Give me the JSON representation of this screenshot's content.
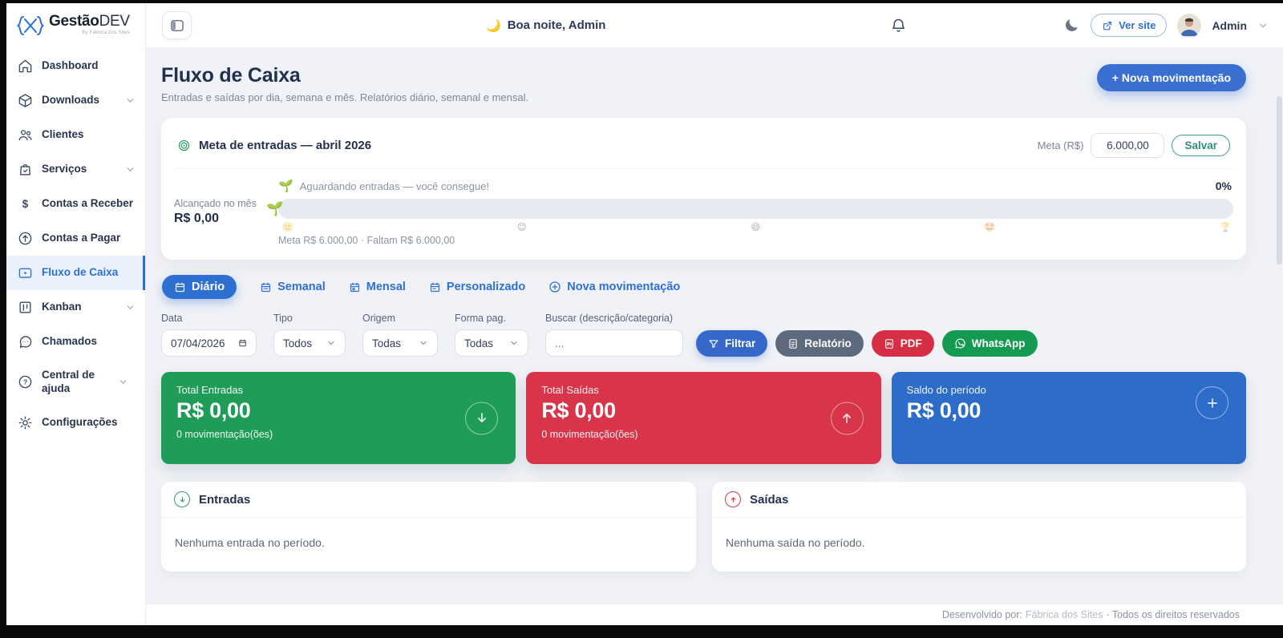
{
  "brand": {
    "name_bold": "Gestão",
    "name_light": "DEV",
    "tagline": "By Fábrica dos Sites"
  },
  "topbar": {
    "greeting_emoji": "🌙",
    "greeting": "Boa noite, Admin",
    "ver_site_label": "Ver site",
    "user_name": "Admin"
  },
  "sidebar": {
    "items": [
      {
        "label": "Dashboard"
      },
      {
        "label": "Downloads"
      },
      {
        "label": "Clientes"
      },
      {
        "label": "Serviços"
      },
      {
        "label": "Contas a Receber"
      },
      {
        "label": "Contas a Pagar"
      },
      {
        "label": "Fluxo de Caixa"
      },
      {
        "label": "Kanban"
      },
      {
        "label": "Chamados"
      },
      {
        "label": "Central de ajuda"
      },
      {
        "label": "Configurações"
      }
    ]
  },
  "page": {
    "title": "Fluxo de Caixa",
    "subtitle": "Entradas e saídas por dia, semana e mês. Relatórios diário, semanal e mensal.",
    "new_movement_label": "+ Nova movimentação"
  },
  "meta": {
    "title": "Meta de entradas — abril 2026",
    "input_label": "Meta (R$)",
    "input_value": "6.000,00",
    "save_label": "Salvar",
    "achieved_label": "Alcançado no mês",
    "achieved_value": "R$ 0,00",
    "status_emoji": "🌱",
    "status_text": "Aguardando entradas — você consegue!",
    "percent": "0%",
    "progress_percent": 0,
    "meta_line": "Meta R$ 6.000,00 · Faltam R$ 6.000,00",
    "milestones": [
      "🙂",
      "😊",
      "😄",
      "🤩",
      "🏆"
    ]
  },
  "tabs": [
    {
      "label": "Diário",
      "active": true
    },
    {
      "label": "Semanal",
      "active": false
    },
    {
      "label": "Mensal",
      "active": false
    },
    {
      "label": "Personalizado",
      "active": false
    },
    {
      "label": "Nova movimentação",
      "active": false
    }
  ],
  "filters": {
    "date_label": "Data",
    "date_value": "07/04/2026",
    "type_label": "Tipo",
    "type_value": "Todos",
    "origin_label": "Origem",
    "origin_value": "Todas",
    "payment_label": "Forma pag.",
    "payment_value": "Todas",
    "search_label": "Buscar (descrição/categoria)",
    "search_placeholder": "...",
    "filter_button": "Filtrar",
    "report_button": "Relatório",
    "pdf_button": "PDF",
    "whatsapp_button": "WhatsApp"
  },
  "summary": {
    "entries": {
      "label": "Total Entradas",
      "value": "R$ 0,00",
      "count": "0 movimentação(ões)",
      "color": "#1f9d58"
    },
    "exits": {
      "label": "Total Saídas",
      "value": "R$ 0,00",
      "count": "0 movimentação(ões)",
      "color": "#d8354a"
    },
    "balance": {
      "label": "Saldo do período",
      "value": "R$ 0,00",
      "color": "#2d6cc8"
    }
  },
  "panels": {
    "entries": {
      "title": "Entradas",
      "empty": "Nenhuma entrada no período."
    },
    "exits": {
      "title": "Saídas",
      "empty": "Nenhuma saída no período."
    }
  },
  "footer": {
    "prefix": "Desenvolvido por:",
    "link": "Fábrica dos Sites",
    "suffix": "· Todos os direitos reservados"
  }
}
